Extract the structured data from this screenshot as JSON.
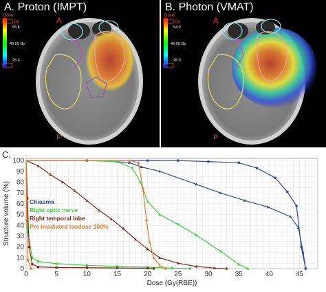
{
  "panels": [
    {
      "title": "A. Proton (IMPT)",
      "dose_label": "Dose",
      "dose_unit": "Gy",
      "scale_top": "55.8",
      "scale_mid": "40.00 Gy",
      "scale_bottom": "25.0",
      "anterior": "A",
      "posterior": "P"
    },
    {
      "title": "B. Photon (VMAT)",
      "dose_label": "Dose",
      "dose_unit": "Gy",
      "scale_top": "54.0",
      "scale_mid": "40.00 Gy",
      "scale_bottom": "25.0",
      "anterior": "A",
      "posterior": "P"
    }
  ],
  "chart_data": {
    "type": "line",
    "panel_label": "C.",
    "xlabel": "Dose (Gy(RBE))",
    "ylabel": "Structure volume (%)",
    "xlim": [
      0,
      48
    ],
    "ylim": [
      0,
      102
    ],
    "xticks": [
      0,
      5,
      10,
      15,
      20,
      25,
      30,
      35,
      40,
      45
    ],
    "yticks": [
      0,
      10,
      20,
      30,
      40,
      50,
      60,
      70,
      80,
      90,
      100
    ],
    "grid": true,
    "legend_position": "left-middle",
    "colors": {
      "chiasma": "#2e4aa3",
      "optic_nerve": "#39d23a",
      "temporal_lobe": "#7a2a18",
      "isodose": "#e8782a"
    },
    "series": [
      {
        "name": "Chiasma",
        "color": "#2e4aa3",
        "curves": [
          {
            "style": "solid",
            "marker": "square",
            "x": [
              0,
              10,
              20,
              25,
              30,
              35,
              38,
              41,
              43,
              44.5,
              45.3,
              46
            ],
            "y": [
              100,
              100,
              100,
              100,
              99,
              98,
              93,
              84,
              71,
              58,
              20,
              0
            ]
          },
          {
            "style": "solid",
            "marker": "triangle",
            "x": [
              0,
              10,
              15,
              17,
              19,
              22,
              28,
              32,
              36,
              39.8,
              43.5,
              44.8,
              45.6,
              46
            ],
            "y": [
              100,
              100,
              99,
              98,
              94,
              90,
              78,
              70,
              63,
              57,
              48,
              38,
              15,
              0
            ]
          }
        ]
      },
      {
        "name": "Right optic nerve",
        "color": "#39d23a",
        "curves": [
          {
            "style": "solid",
            "marker": "square",
            "x": [
              0,
              0.3,
              1,
              2,
              5,
              10,
              15,
              20,
              24,
              27
            ],
            "y": [
              100,
              34,
              10,
              6.5,
              4.5,
              3,
              2,
              1.3,
              0.5,
              0
            ]
          },
          {
            "style": "solid",
            "marker": "triangle",
            "x": [
              0,
              10,
              15,
              17.5,
              18.8,
              20,
              22,
              25,
              28,
              32,
              35,
              36.5
            ],
            "y": [
              100,
              100,
              99,
              93,
              80,
              62,
              50,
              41,
              31,
              16,
              4,
              0
            ]
          }
        ]
      },
      {
        "name": "Right temporal lobe",
        "color": "#7a2a18",
        "curves": [
          {
            "style": "solid",
            "marker": "square",
            "x": [
              0,
              0.2,
              0.5,
              1,
              2,
              5,
              10,
              15,
              20,
              21
            ],
            "y": [
              100,
              65,
              20,
              4,
              1.5,
              1,
              0.8,
              0.6,
              0.3,
              0
            ]
          },
          {
            "style": "solid",
            "marker": "triangle",
            "x": [
              0,
              2,
              4,
              6,
              8,
              10,
              12,
              14,
              16,
              18,
              20,
              22,
              25,
              28,
              31,
              33
            ],
            "y": [
              100,
              95,
              87,
              80,
              72,
              63,
              54,
              46,
              37,
              27,
              18,
              10,
              5,
              2,
              0.5,
              0
            ]
          }
        ]
      },
      {
        "name": "Pre irradiated Isodose 100%",
        "color": "#e8782a",
        "curves": [
          {
            "style": "solid",
            "marker": "square",
            "x": [
              0,
              0.1,
              0.3,
              0.8
            ],
            "y": [
              100,
              45,
              8,
              0
            ]
          },
          {
            "style": "solid",
            "marker": "triangle",
            "x": [
              0,
              10,
              17,
              18.5,
              19.2,
              19.8,
              20.3,
              21,
              22,
              23
            ],
            "y": [
              100,
              100,
              100,
              98,
              75,
              45,
              25,
              10,
              3,
              0
            ]
          }
        ]
      }
    ]
  }
}
